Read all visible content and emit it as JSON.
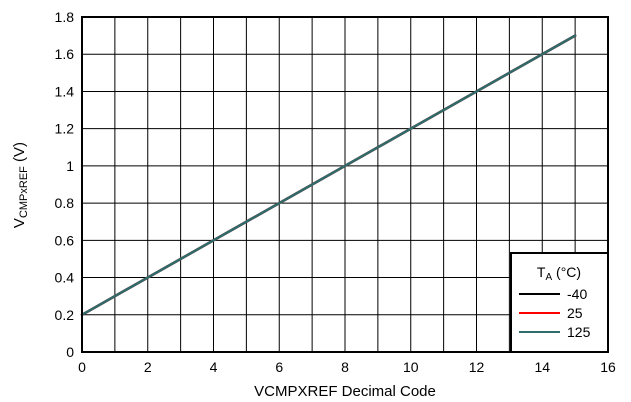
{
  "chart_data": {
    "type": "line",
    "xlabel": "VCMPXREF Decimal Code",
    "ylabel_main": "V",
    "ylabel_sub": "CMPxREF",
    "ylabel_unit": " (V)",
    "xlim": [
      0,
      16
    ],
    "ylim": [
      0,
      1.8
    ],
    "xticks": [
      0,
      2,
      4,
      6,
      8,
      10,
      12,
      14,
      16
    ],
    "xtick_labels": [
      "0",
      "2",
      "4",
      "6",
      "8",
      "10",
      "12",
      "14",
      "16"
    ],
    "yticks": [
      0,
      0.2,
      0.4,
      0.6,
      0.8,
      1,
      1.2,
      1.4,
      1.6,
      1.8
    ],
    "ytick_labels": [
      "0",
      "0.2",
      "0.4",
      "0.6",
      "0.8",
      "1",
      "1.2",
      "1.4",
      "1.6",
      "1.8"
    ],
    "x_minor_grid": [
      1,
      3,
      5,
      7,
      9,
      11,
      13,
      15
    ],
    "grid": true,
    "legend": {
      "placement": "bottom-right",
      "title_main": "T",
      "title_sub": "A",
      "title_unit": " (°C)"
    },
    "series": [
      {
        "name": "-40",
        "color": "#000000",
        "x": [
          0,
          15
        ],
        "y": [
          0.2,
          1.7
        ]
      },
      {
        "name": "25",
        "color": "#ff0000",
        "x": [
          0,
          15
        ],
        "y": [
          0.2,
          1.7
        ]
      },
      {
        "name": "125",
        "color": "#2f6b6b",
        "x": [
          0,
          15
        ],
        "y": [
          0.2,
          1.7
        ]
      }
    ]
  }
}
